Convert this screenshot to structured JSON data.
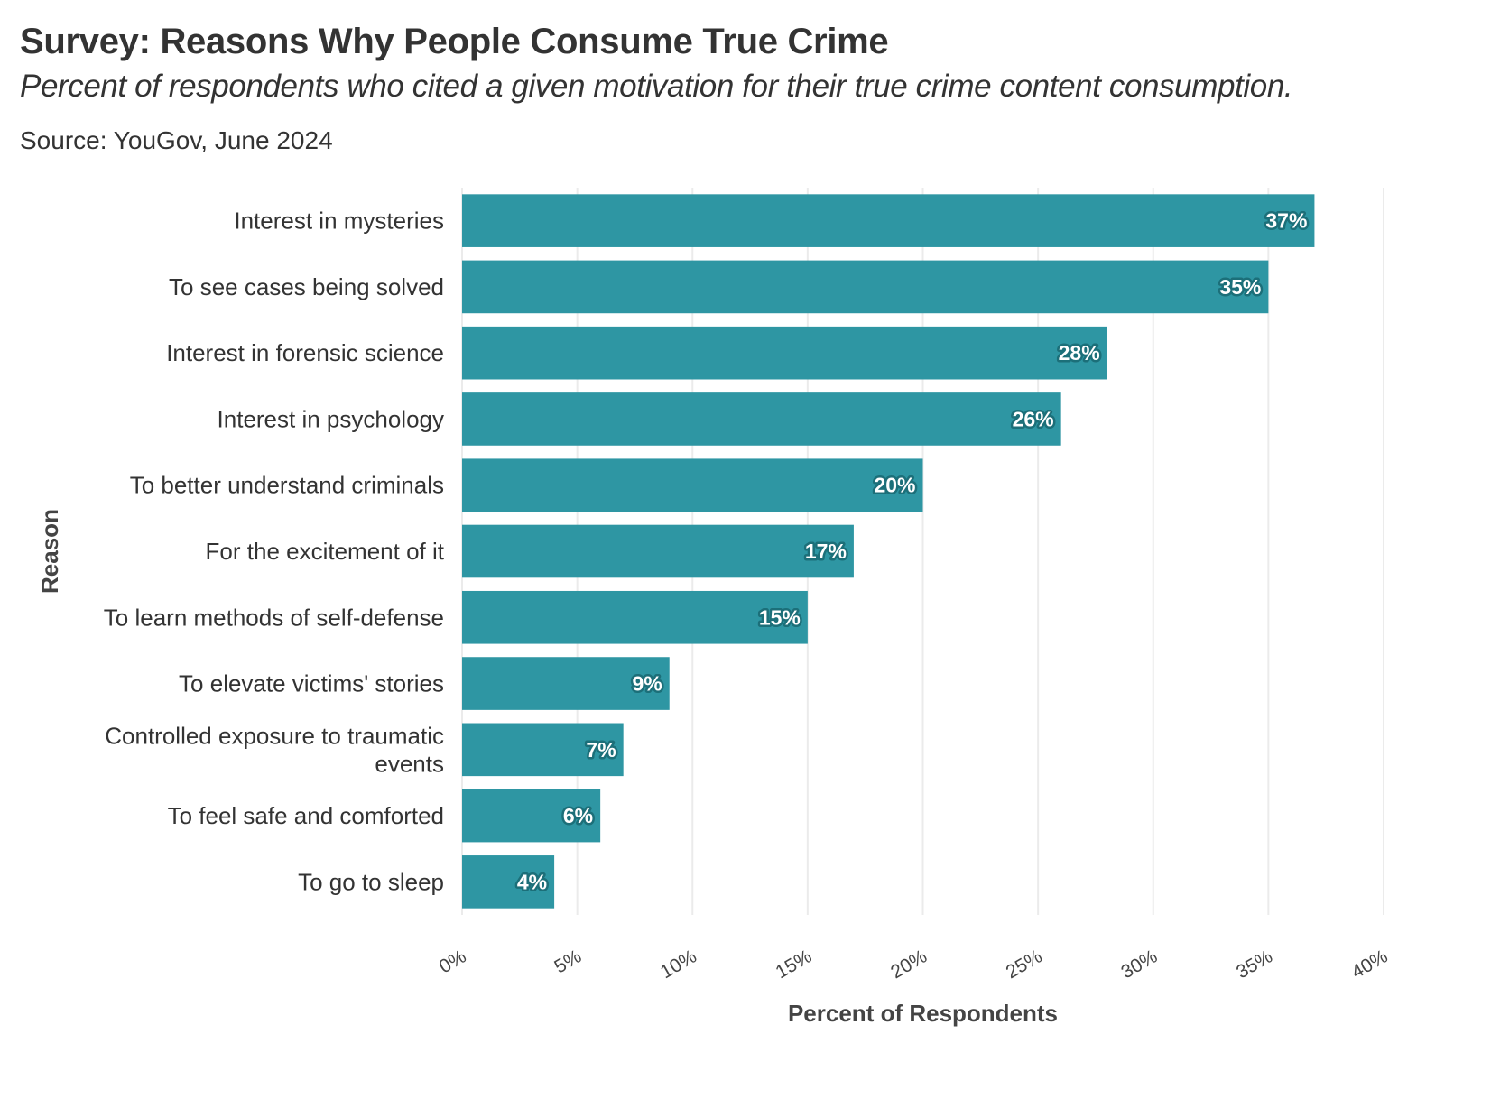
{
  "chart_data": {
    "type": "bar",
    "orientation": "horizontal",
    "title": "Survey: Reasons Why People Consume True Crime",
    "subtitle": "Percent of respondents who cited a given motivation for their true crime content consumption.",
    "caption": "Source: YouGov, June 2024",
    "xlabel": "Percent of Respondents",
    "ylabel": "Reason",
    "categories": [
      "Interest in mysteries",
      "To see cases being solved",
      "Interest in forensic science",
      "Interest in psychology",
      "To better understand criminals",
      "For the excitement of it",
      "To learn methods of self-defense",
      "To elevate victims' stories",
      "Controlled exposure to traumatic events",
      "To feel safe and comforted",
      "To go to sleep"
    ],
    "category_lines": [
      [
        "Interest in mysteries"
      ],
      [
        "To see cases being solved"
      ],
      [
        "Interest in forensic science"
      ],
      [
        "Interest in psychology"
      ],
      [
        "To better understand criminals"
      ],
      [
        "For the excitement of it"
      ],
      [
        "To learn methods of self-defense"
      ],
      [
        "To elevate victims' stories"
      ],
      [
        "Controlled exposure to traumatic",
        "events"
      ],
      [
        "To feel safe and comforted"
      ],
      [
        "To go to sleep"
      ]
    ],
    "values": [
      37,
      35,
      28,
      26,
      20,
      17,
      15,
      9,
      7,
      6,
      4
    ],
    "data_labels": [
      "37%",
      "35%",
      "28%",
      "26%",
      "20%",
      "17%",
      "15%",
      "9%",
      "7%",
      "6%",
      "4%"
    ],
    "xlim": [
      0,
      40
    ],
    "x_ticks": [
      0,
      5,
      10,
      15,
      20,
      25,
      30,
      35,
      40
    ],
    "x_tick_labels": [
      "0%",
      "5%",
      "10%",
      "15%",
      "20%",
      "25%",
      "30%",
      "35%",
      "40%"
    ],
    "grid": true,
    "legend": "none",
    "colors": {
      "bar": "#2e96a3",
      "grid": "#ebebeb",
      "label_outline": "#1c6f79",
      "label_text": "#ffffff"
    }
  }
}
